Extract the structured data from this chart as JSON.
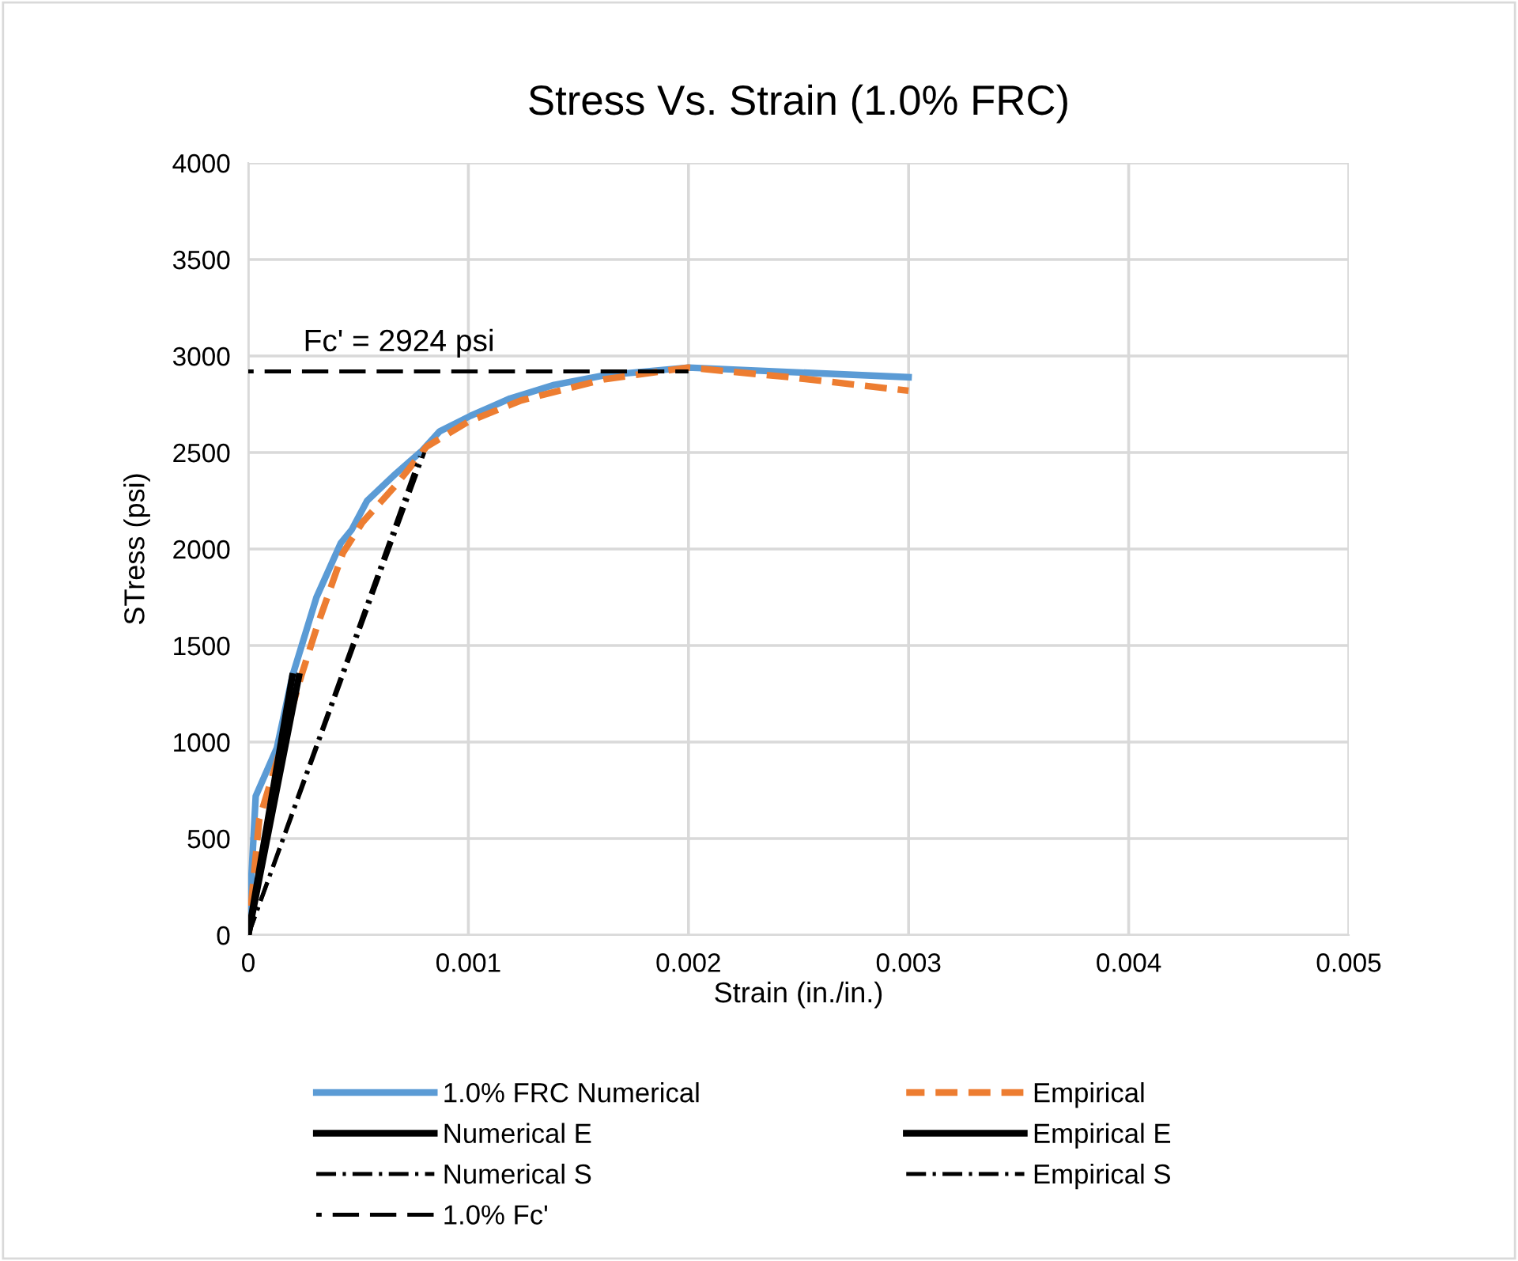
{
  "chart_data": {
    "type": "line",
    "title": "Stress Vs. Strain (1.0% FRC)",
    "xlabel": "Strain (in./in.)",
    "ylabel": "STress (psi)",
    "xlim": [
      0,
      0.005
    ],
    "xticks": [
      0,
      0.001,
      0.002,
      0.003,
      0.004,
      0.005
    ],
    "ylim": [
      0,
      4000
    ],
    "yticks": [
      0,
      500,
      1000,
      1500,
      2000,
      2500,
      3000,
      3500,
      4000
    ],
    "grid": true,
    "legend": "bottom",
    "marker": "none",
    "annotations": [
      {
        "text": "Fc' = 2924 psi",
        "x": 0.00025,
        "y": 2924
      }
    ],
    "series": [
      {
        "name": "1.0% FRC Numerical",
        "color": "#5b9bd5",
        "line_style": "solid",
        "x": [
          0,
          3.4e-05,
          0.00013,
          0.0002,
          0.00031,
          0.00042,
          0.00047,
          0.00054,
          0.00067,
          0.00079,
          0.00087,
          0.00101,
          0.00119,
          0.00139,
          0.00162,
          0.002,
          0.003
        ],
        "values": [
          0,
          720,
          970,
          1340,
          1750,
          2030,
          2100,
          2250,
          2390,
          2510,
          2610,
          2690,
          2780,
          2850,
          2900,
          2940,
          2890
        ]
      },
      {
        "name": "Empirical",
        "color": "#ed7d31",
        "line_style": "dashed",
        "x": [
          0,
          5e-05,
          0.00013,
          0.00024,
          0.00031,
          0.00043,
          0.00052,
          0.00067,
          0.00081,
          0.001,
          0.00124,
          0.00162,
          0.002,
          0.00246,
          0.003
        ],
        "values": [
          0,
          600,
          900,
          1340,
          1590,
          1980,
          2140,
          2330,
          2530,
          2660,
          2770,
          2880,
          2940,
          2890,
          2820
        ]
      },
      {
        "name": "Numerical E",
        "color": "#000000",
        "line_style": "solid",
        "x": [
          0,
          0.0002
        ],
        "values": [
          0,
          1340
        ]
      },
      {
        "name": "Empirical E",
        "color": "#000000",
        "line_style": "solid",
        "x": [
          0,
          0.00023
        ],
        "values": [
          0,
          1340
        ]
      },
      {
        "name": "Numerical S",
        "color": "#000000",
        "line_style": "dashdot",
        "x": [
          0,
          0.0008
        ],
        "values": [
          0,
          2500
        ]
      },
      {
        "name": "Empirical S",
        "color": "#000000",
        "line_style": "dashdot",
        "x": [
          0,
          0.00078
        ],
        "values": [
          0,
          2480
        ]
      },
      {
        "name": "1.0% Fc'",
        "color": "#000000",
        "line_style": "dashed",
        "x": [
          0,
          0.002
        ],
        "values": [
          2920,
          2920
        ]
      }
    ]
  }
}
